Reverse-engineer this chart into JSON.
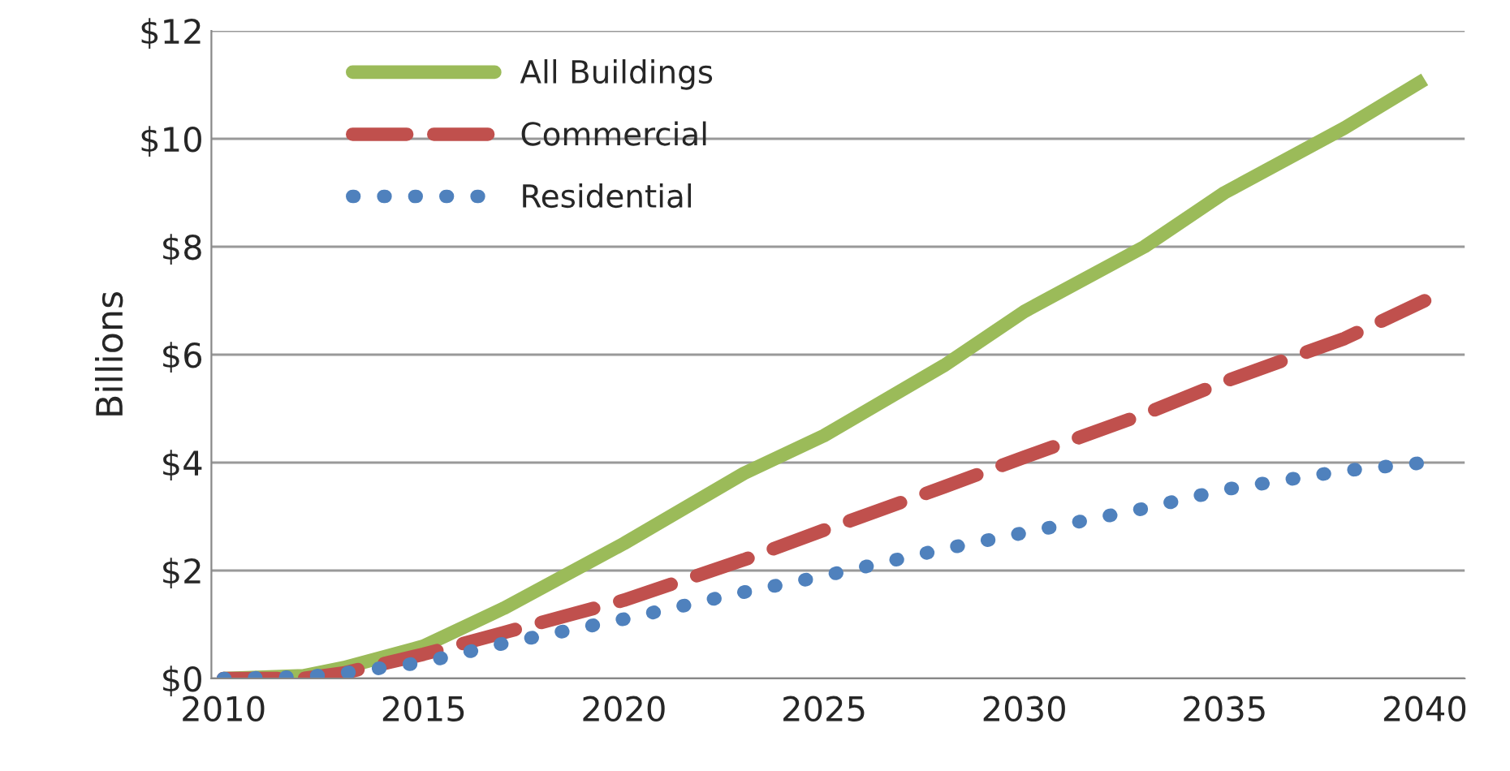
{
  "chart_data": {
    "type": "line",
    "ylabel": "Billions",
    "x": [
      2010,
      2012,
      2013,
      2015,
      2017,
      2020,
      2023,
      2025,
      2028,
      2030,
      2033,
      2035,
      2038,
      2040
    ],
    "series": [
      {
        "name": "All Buildings",
        "color": "#9bbb59",
        "line_style": "solid",
        "values": [
          0,
          0.05,
          0.2,
          0.6,
          1.3,
          2.5,
          3.8,
          4.5,
          5.8,
          6.8,
          8.0,
          9.0,
          10.2,
          11.1
        ]
      },
      {
        "name": "Commercial",
        "color": "#c0504d",
        "line_style": "dashed",
        "values": [
          0,
          0,
          0.1,
          0.45,
          0.85,
          1.45,
          2.2,
          2.75,
          3.55,
          4.1,
          4.9,
          5.5,
          6.3,
          7.0
        ]
      },
      {
        "name": "Residential",
        "color": "#4f81bd",
        "line_style": "dotted",
        "values": [
          0,
          0.03,
          0.1,
          0.3,
          0.65,
          1.1,
          1.6,
          1.9,
          2.4,
          2.7,
          3.15,
          3.5,
          3.85,
          4.0
        ]
      }
    ],
    "xlim": [
      2009.7,
      2041
    ],
    "xticks": [
      2010,
      2015,
      2020,
      2025,
      2030,
      2035,
      2040
    ],
    "ylim": [
      0,
      12
    ],
    "yticks": [
      {
        "value": 0,
        "label": "$0"
      },
      {
        "value": 2,
        "label": "$2"
      },
      {
        "value": 4,
        "label": "$4"
      },
      {
        "value": 6,
        "label": "$6"
      },
      {
        "value": 8,
        "label": "$8"
      },
      {
        "value": 10,
        "label": "$10"
      },
      {
        "value": 12,
        "label": "$12"
      }
    ],
    "grid": "y",
    "legend": "top left"
  }
}
